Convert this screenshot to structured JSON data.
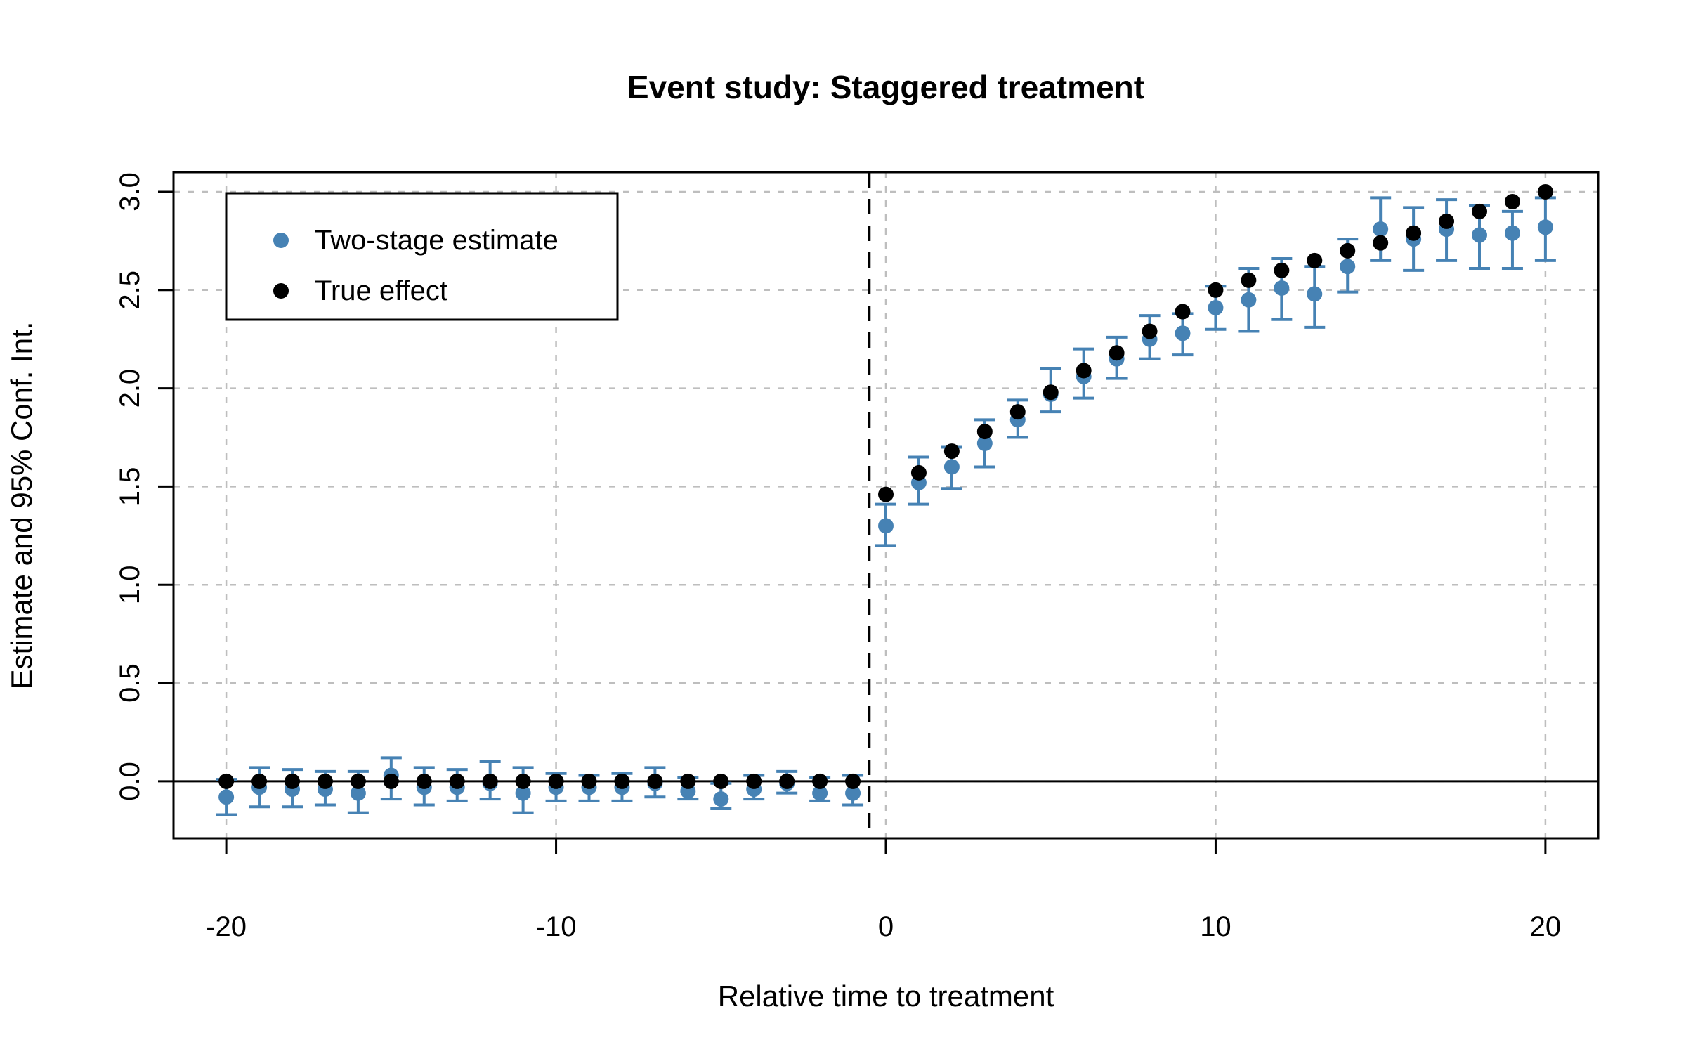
{
  "chart_data": {
    "type": "scatter",
    "title": "Event study: Staggered treatment",
    "xlabel": "Relative time to treatment",
    "ylabel": "Estimate and 95% Conf. Int.",
    "xlim": [
      -21.6,
      21.6
    ],
    "ylim": [
      -0.29,
      3.1
    ],
    "x_ticks": [
      "-20",
      "-10",
      "0",
      "10",
      "20"
    ],
    "x_tick_values": [
      -20,
      -10,
      0,
      10,
      20
    ],
    "y_ticks": [
      "0.0",
      "0.5",
      "1.0",
      "1.5",
      "2.0",
      "2.5",
      "3.0"
    ],
    "y_tick_values": [
      0,
      0.5,
      1.0,
      1.5,
      2.0,
      2.5,
      3.0
    ],
    "grid": true,
    "legend_position": "top-left",
    "reference_lines": {
      "horizontal_solid_y": 0,
      "vertical_dashed_x": -0.5
    },
    "colors": {
      "estimate": "#4682B4",
      "true_effect": "#000000",
      "grid": "#BEBEBE"
    },
    "x": [
      -20,
      -19,
      -18,
      -17,
      -16,
      -15,
      -14,
      -13,
      -12,
      -11,
      -10,
      -9,
      -8,
      -7,
      -6,
      -5,
      -4,
      -3,
      -2,
      -1,
      0,
      1,
      2,
      3,
      4,
      5,
      6,
      7,
      8,
      9,
      10,
      11,
      12,
      13,
      14,
      15,
      16,
      17,
      18,
      19,
      20
    ],
    "series": [
      {
        "name": "Two-stage estimate",
        "color": "#4682B4",
        "marker": "circle",
        "values": [
          -0.08,
          -0.03,
          -0.04,
          -0.04,
          -0.06,
          0.03,
          -0.03,
          -0.03,
          -0.01,
          -0.06,
          -0.03,
          -0.03,
          -0.03,
          -0.01,
          -0.05,
          -0.09,
          -0.04,
          -0.01,
          -0.06,
          -0.06,
          1.3,
          1.52,
          1.6,
          1.72,
          1.84,
          1.97,
          2.06,
          2.15,
          2.25,
          2.28,
          2.41,
          2.45,
          2.51,
          2.48,
          2.62,
          2.81,
          2.76,
          2.81,
          2.78,
          2.79,
          2.82
        ],
        "ci_low": [
          -0.17,
          -0.13,
          -0.13,
          -0.12,
          -0.16,
          -0.09,
          -0.12,
          -0.1,
          -0.09,
          -0.16,
          -0.1,
          -0.1,
          -0.1,
          -0.08,
          -0.09,
          -0.14,
          -0.09,
          -0.06,
          -0.1,
          -0.12,
          1.2,
          1.41,
          1.49,
          1.6,
          1.75,
          1.88,
          1.95,
          2.05,
          2.15,
          2.17,
          2.3,
          2.29,
          2.35,
          2.31,
          2.49,
          2.65,
          2.6,
          2.65,
          2.61,
          2.61,
          2.65
        ],
        "ci_high": [
          0.01,
          0.07,
          0.06,
          0.05,
          0.05,
          0.12,
          0.07,
          0.06,
          0.1,
          0.07,
          0.04,
          0.03,
          0.04,
          0.07,
          0.02,
          -0.01,
          0.03,
          0.05,
          0.02,
          0.03,
          1.41,
          1.65,
          1.7,
          1.84,
          1.94,
          2.1,
          2.2,
          2.26,
          2.37,
          2.38,
          2.52,
          2.61,
          2.66,
          2.62,
          2.76,
          2.97,
          2.92,
          2.96,
          2.93,
          2.9,
          2.97
        ]
      },
      {
        "name": "True effect",
        "color": "#000000",
        "marker": "circle",
        "values": [
          0,
          0,
          0,
          0,
          0,
          0,
          0,
          0,
          0,
          0,
          0,
          0,
          0,
          0,
          0,
          0,
          0,
          0,
          0,
          0,
          1.46,
          1.57,
          1.68,
          1.78,
          1.88,
          1.98,
          2.09,
          2.18,
          2.29,
          2.39,
          2.5,
          2.55,
          2.6,
          2.65,
          2.7,
          2.74,
          2.79,
          2.85,
          2.9,
          2.95,
          3.0
        ]
      }
    ]
  }
}
